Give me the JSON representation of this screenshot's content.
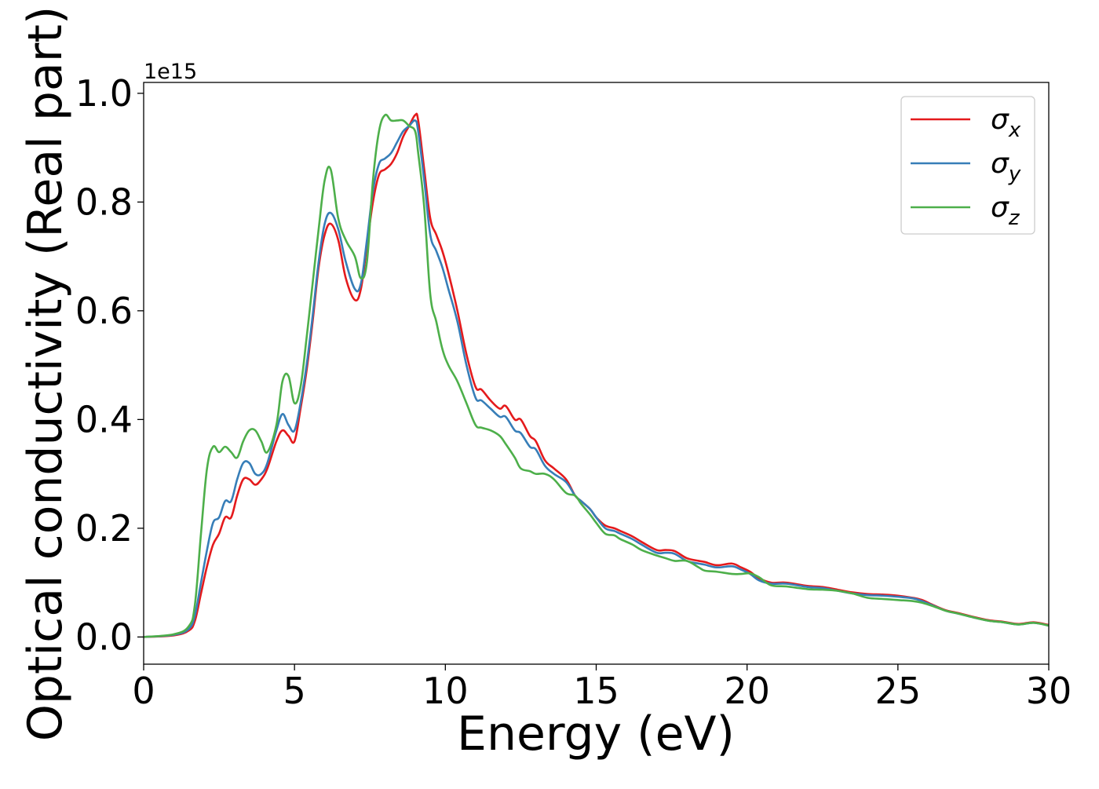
{
  "chart_data": {
    "type": "line",
    "xlabel": "Energy (eV)",
    "ylabel": "Optical conductivity (Real part)",
    "y_offset_label": "1e15",
    "xlim": [
      0,
      30
    ],
    "ylim": [
      -0.05,
      1.02
    ],
    "xticks": [
      0,
      5,
      10,
      15,
      20,
      25,
      30
    ],
    "xtick_labels": [
      "0",
      "5",
      "10",
      "15",
      "20",
      "25",
      "30"
    ],
    "yticks": [
      0.0,
      0.2,
      0.4,
      0.6,
      0.8,
      1.0
    ],
    "ytick_labels": [
      "0.0",
      "0.2",
      "0.4",
      "0.6",
      "0.8",
      "1.0"
    ],
    "grid": false,
    "legend_position": "top-right",
    "series": [
      {
        "name": "σx",
        "symbol": "σ",
        "subscript": "x",
        "color": "#e41a1c",
        "x": [
          0,
          1.0,
          1.5,
          1.7,
          1.9,
          2.1,
          2.3,
          2.5,
          2.7,
          2.9,
          3.1,
          3.3,
          3.5,
          3.7,
          3.9,
          4.1,
          4.4,
          4.6,
          4.8,
          5.0,
          5.2,
          5.4,
          5.6,
          5.8,
          6.0,
          6.2,
          6.45,
          6.7,
          7.0,
          7.2,
          7.4,
          7.6,
          7.8,
          8.0,
          8.2,
          8.4,
          8.6,
          8.8,
          9.0,
          9.1,
          9.3,
          9.5,
          9.7,
          9.9,
          10.1,
          10.4,
          10.7,
          11.0,
          11.2,
          11.5,
          11.8,
          12.0,
          12.3,
          12.5,
          12.8,
          13.0,
          13.3,
          13.6,
          14.0,
          14.3,
          14.5,
          14.8,
          15.0,
          15.3,
          15.6,
          15.8,
          16.2,
          16.5,
          17.0,
          17.3,
          17.6,
          18.0,
          18.4,
          18.6,
          19.0,
          19.5,
          19.8,
          20.1,
          20.4,
          20.8,
          21.3,
          22.0,
          22.5,
          23.0,
          23.5,
          24.0,
          24.5,
          25.0,
          25.5,
          25.8,
          26.2,
          26.6,
          27.0,
          27.5,
          28.0,
          28.5,
          29.0,
          29.5,
          30.0
        ],
        "values": [
          0,
          0.003,
          0.012,
          0.03,
          0.08,
          0.13,
          0.17,
          0.19,
          0.22,
          0.22,
          0.26,
          0.29,
          0.29,
          0.28,
          0.29,
          0.31,
          0.36,
          0.38,
          0.37,
          0.36,
          0.42,
          0.49,
          0.58,
          0.68,
          0.74,
          0.76,
          0.73,
          0.66,
          0.62,
          0.64,
          0.72,
          0.8,
          0.85,
          0.86,
          0.87,
          0.89,
          0.92,
          0.94,
          0.96,
          0.95,
          0.86,
          0.77,
          0.74,
          0.71,
          0.67,
          0.6,
          0.52,
          0.46,
          0.455,
          0.435,
          0.42,
          0.425,
          0.4,
          0.4,
          0.37,
          0.36,
          0.325,
          0.31,
          0.29,
          0.26,
          0.25,
          0.235,
          0.22,
          0.205,
          0.2,
          0.195,
          0.185,
          0.175,
          0.16,
          0.16,
          0.158,
          0.145,
          0.14,
          0.138,
          0.132,
          0.135,
          0.128,
          0.12,
          0.108,
          0.1,
          0.1,
          0.094,
          0.092,
          0.087,
          0.082,
          0.079,
          0.078,
          0.076,
          0.072,
          0.068,
          0.058,
          0.049,
          0.044,
          0.037,
          0.031,
          0.028,
          0.024,
          0.027,
          0.022
        ]
      },
      {
        "name": "σy",
        "symbol": "σ",
        "subscript": "y",
        "color": "#377eb8",
        "x": [
          0,
          1.0,
          1.5,
          1.7,
          1.9,
          2.1,
          2.3,
          2.5,
          2.7,
          2.9,
          3.1,
          3.3,
          3.5,
          3.7,
          3.9,
          4.1,
          4.4,
          4.6,
          4.8,
          5.0,
          5.2,
          5.4,
          5.6,
          5.8,
          6.0,
          6.2,
          6.45,
          6.7,
          7.0,
          7.2,
          7.4,
          7.6,
          7.8,
          8.0,
          8.2,
          8.4,
          8.6,
          8.8,
          9.0,
          9.1,
          9.3,
          9.5,
          9.7,
          9.9,
          10.1,
          10.4,
          10.7,
          11.0,
          11.2,
          11.5,
          11.8,
          12.0,
          12.3,
          12.5,
          12.8,
          13.0,
          13.3,
          13.6,
          14.0,
          14.3,
          14.5,
          14.8,
          15.0,
          15.3,
          15.6,
          15.8,
          16.2,
          16.5,
          17.0,
          17.3,
          17.6,
          18.0,
          18.4,
          18.6,
          19.0,
          19.5,
          19.8,
          20.1,
          20.4,
          20.8,
          21.3,
          22.0,
          22.5,
          23.0,
          23.5,
          24.0,
          24.5,
          25.0,
          25.5,
          25.8,
          26.2,
          26.6,
          27.0,
          27.5,
          28.0,
          28.5,
          29.0,
          29.5,
          30.0
        ],
        "values": [
          0,
          0.004,
          0.015,
          0.04,
          0.1,
          0.16,
          0.21,
          0.22,
          0.25,
          0.25,
          0.29,
          0.32,
          0.32,
          0.3,
          0.3,
          0.32,
          0.38,
          0.41,
          0.39,
          0.38,
          0.43,
          0.5,
          0.59,
          0.69,
          0.76,
          0.78,
          0.75,
          0.69,
          0.64,
          0.65,
          0.73,
          0.82,
          0.87,
          0.88,
          0.89,
          0.91,
          0.93,
          0.94,
          0.95,
          0.93,
          0.84,
          0.74,
          0.71,
          0.68,
          0.64,
          0.58,
          0.5,
          0.44,
          0.435,
          0.42,
          0.405,
          0.405,
          0.38,
          0.375,
          0.35,
          0.345,
          0.315,
          0.3,
          0.285,
          0.26,
          0.25,
          0.235,
          0.22,
          0.2,
          0.195,
          0.19,
          0.18,
          0.17,
          0.155,
          0.155,
          0.153,
          0.14,
          0.135,
          0.133,
          0.128,
          0.13,
          0.124,
          0.116,
          0.104,
          0.098,
          0.098,
          0.092,
          0.09,
          0.085,
          0.08,
          0.077,
          0.076,
          0.074,
          0.071,
          0.066,
          0.057,
          0.048,
          0.043,
          0.036,
          0.03,
          0.027,
          0.023,
          0.026,
          0.021
        ]
      },
      {
        "name": "σz",
        "symbol": "σ",
        "subscript": "z",
        "color": "#4daf4a",
        "x": [
          0,
          1.0,
          1.5,
          1.7,
          1.9,
          2.1,
          2.3,
          2.5,
          2.7,
          2.9,
          3.1,
          3.3,
          3.5,
          3.7,
          3.9,
          4.1,
          4.4,
          4.6,
          4.8,
          5.0,
          5.2,
          5.4,
          5.6,
          5.8,
          6.0,
          6.2,
          6.45,
          6.7,
          7.0,
          7.2,
          7.4,
          7.6,
          7.8,
          8.0,
          8.2,
          8.4,
          8.6,
          8.8,
          9.0,
          9.1,
          9.3,
          9.5,
          9.7,
          9.9,
          10.1,
          10.4,
          10.7,
          11.0,
          11.2,
          11.5,
          11.8,
          12.0,
          12.3,
          12.5,
          12.8,
          13.0,
          13.3,
          13.6,
          14.0,
          14.3,
          14.5,
          14.8,
          15.0,
          15.3,
          15.6,
          15.8,
          16.2,
          16.5,
          17.0,
          17.3,
          17.6,
          18.0,
          18.4,
          18.6,
          19.0,
          19.5,
          19.8,
          20.1,
          20.4,
          20.8,
          21.3,
          22.0,
          22.5,
          23.0,
          23.5,
          24.0,
          24.5,
          25.0,
          25.5,
          25.8,
          26.2,
          26.6,
          27.0,
          27.5,
          28.0,
          28.5,
          29.0,
          29.5,
          30.0
        ],
        "values": [
          0,
          0.005,
          0.02,
          0.06,
          0.19,
          0.31,
          0.35,
          0.34,
          0.35,
          0.34,
          0.33,
          0.36,
          0.38,
          0.38,
          0.36,
          0.34,
          0.39,
          0.47,
          0.48,
          0.43,
          0.46,
          0.55,
          0.65,
          0.75,
          0.84,
          0.86,
          0.77,
          0.73,
          0.7,
          0.66,
          0.69,
          0.84,
          0.93,
          0.96,
          0.95,
          0.95,
          0.95,
          0.94,
          0.93,
          0.89,
          0.79,
          0.63,
          0.58,
          0.53,
          0.5,
          0.47,
          0.43,
          0.39,
          0.385,
          0.38,
          0.37,
          0.355,
          0.33,
          0.31,
          0.305,
          0.3,
          0.3,
          0.29,
          0.265,
          0.26,
          0.245,
          0.225,
          0.21,
          0.19,
          0.187,
          0.18,
          0.17,
          0.16,
          0.15,
          0.145,
          0.14,
          0.14,
          0.128,
          0.122,
          0.12,
          0.116,
          0.116,
          0.117,
          0.11,
          0.095,
          0.093,
          0.088,
          0.087,
          0.085,
          0.08,
          0.072,
          0.07,
          0.068,
          0.066,
          0.063,
          0.056,
          0.048,
          0.043,
          0.036,
          0.03,
          0.027,
          0.023,
          0.026,
          0.021
        ]
      }
    ]
  }
}
